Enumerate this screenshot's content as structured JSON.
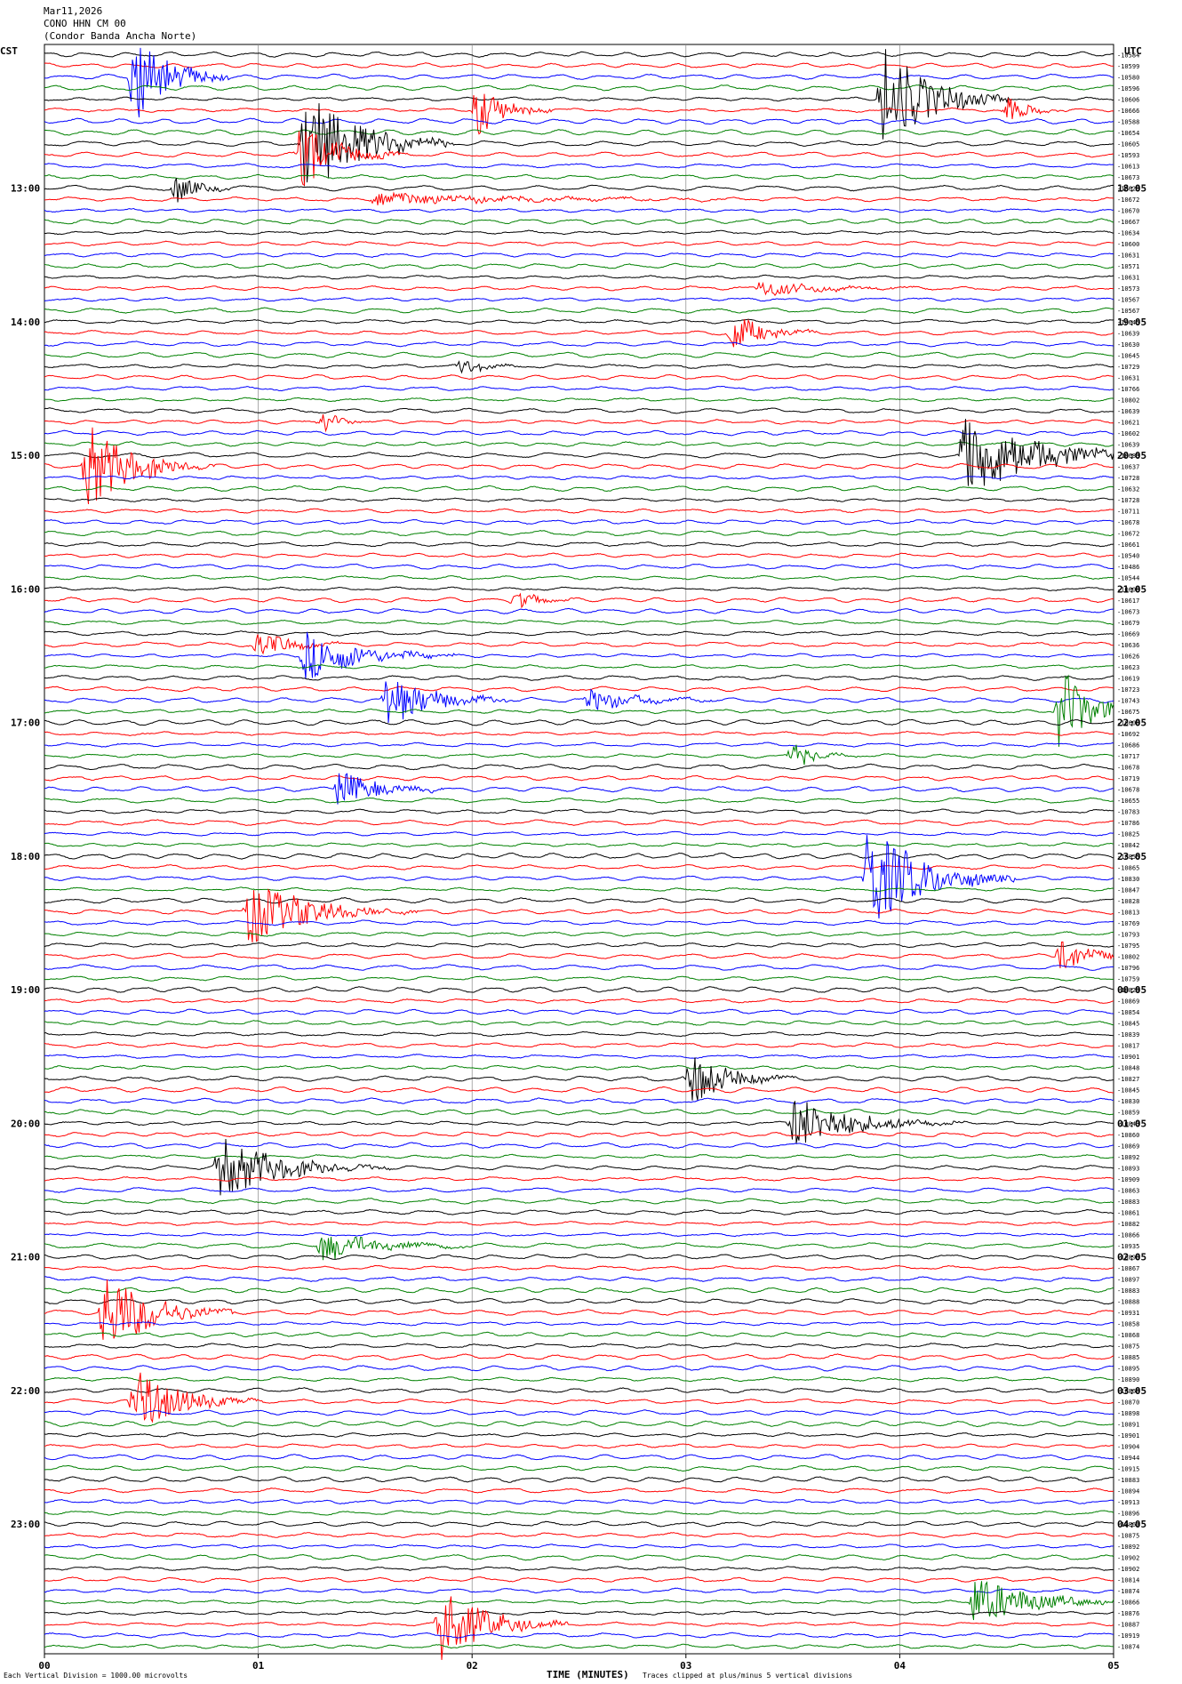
{
  "header": {
    "date": "Mar11,2026",
    "station": "CONO HHN CM 00",
    "location": "(Condor Banda Ancha Norte)"
  },
  "corners": {
    "left": "CST",
    "right": "UTC"
  },
  "footer": {
    "left_note": "Each Vertical Division = 1000.00 microvolts",
    "right_note": "Traces clipped at plus/minus 5 vertical divisions"
  },
  "chart_data": {
    "type": "line",
    "xlabel": "TIME (MINUTES)",
    "xlim": [
      0,
      5
    ],
    "x_ticks": [
      "00",
      "01",
      "02",
      "03",
      "04",
      "05"
    ],
    "trace_colors": [
      "#000000",
      "#ff0000",
      "#0000ff",
      "#008000"
    ],
    "trace_count": 144,
    "left_time_labels": [
      {
        "trace": 12,
        "label": "13:00"
      },
      {
        "trace": 24,
        "label": "14:00"
      },
      {
        "trace": 36,
        "label": "15:00"
      },
      {
        "trace": 48,
        "label": "16:00"
      },
      {
        "trace": 60,
        "label": "17:00"
      },
      {
        "trace": 72,
        "label": "18:00"
      },
      {
        "trace": 84,
        "label": "19:00"
      },
      {
        "trace": 96,
        "label": "20:00"
      },
      {
        "trace": 108,
        "label": "21:00"
      },
      {
        "trace": 120,
        "label": "22:00"
      },
      {
        "trace": 132,
        "label": "23:00"
      }
    ],
    "right_time_labels": [
      {
        "trace": 12,
        "label": "18:05"
      },
      {
        "trace": 24,
        "label": "19:05"
      },
      {
        "trace": 36,
        "label": "20:05"
      },
      {
        "trace": 48,
        "label": "21:05"
      },
      {
        "trace": 60,
        "label": "22:05"
      },
      {
        "trace": 72,
        "label": "23:05"
      },
      {
        "trace": 84,
        "label": "00:05"
      },
      {
        "trace": 96,
        "label": "01:05"
      },
      {
        "trace": 108,
        "label": "02:05"
      },
      {
        "trace": 120,
        "label": "03:05"
      },
      {
        "trace": 132,
        "label": "04:05"
      }
    ],
    "trace_values": [
      "-10584",
      "-10599",
      "-10580",
      "-10596",
      "-10606",
      "-10666",
      "-10588",
      "-10654",
      "-10605",
      "-10593",
      "-10613",
      "-10673",
      "-10628",
      "-10672",
      "-10670",
      "-10667",
      "-10634",
      "-10600",
      "-10631",
      "-10571",
      "-10631",
      "-10573",
      "-10567",
      "-10567",
      "-10645",
      "-10639",
      "-10630",
      "-10645",
      "-10729",
      "-10631",
      "-10766",
      "-10802",
      "-10639",
      "-10621",
      "-10602",
      "-10639",
      "-10683",
      "-10637",
      "-10728",
      "-10632",
      "-10728",
      "-10711",
      "-10678",
      "-10672",
      "-10661",
      "-10540",
      "-10486",
      "-10544",
      "-10608",
      "-10617",
      "-10673",
      "-10679",
      "-10669",
      "-10636",
      "-10626",
      "-10623",
      "-10619",
      "-10723",
      "-10743",
      "-10675",
      "-10608",
      "-10692",
      "-10686",
      "-10717",
      "-10678",
      "-10719",
      "-10678",
      "-10655",
      "-10783",
      "-10786",
      "-10825",
      "-10842",
      "-10855",
      "-10865",
      "-10830",
      "-10847",
      "-10828",
      "-10813",
      "-10769",
      "-10793",
      "-10795",
      "-10802",
      "-10796",
      "-10759",
      "-10829",
      "-10869",
      "-10854",
      "-10845",
      "-10839",
      "-10817",
      "-10901",
      "-10848",
      "-10827",
      "-10845",
      "-10830",
      "-10859",
      "-10843",
      "-10860",
      "-10869",
      "-10892",
      "-10893",
      "-10909",
      "-10863",
      "-10883",
      "-10861",
      "-10882",
      "-10866",
      "-10935",
      "-10890",
      "-10867",
      "-10897",
      "-10883",
      "-10888",
      "-10931",
      "-10858",
      "-10868",
      "-10875",
      "-10885",
      "-10895",
      "-10890",
      "-10868",
      "-10870",
      "-10898",
      "-10891",
      "-10901",
      "-10904",
      "-10944",
      "-10915",
      "-10883",
      "-10894",
      "-10913",
      "-10896",
      "-10867",
      "-10875",
      "-10892",
      "-10902",
      "-10902",
      "-10814",
      "-10874",
      "-10866",
      "-10876",
      "-10887",
      "-10919",
      "-10874"
    ],
    "events": [
      {
        "trace": 2,
        "minute": 0.42,
        "amp": 4.5,
        "dur": 0.45
      },
      {
        "trace": 4,
        "minute": 3.92,
        "amp": 5.0,
        "dur": 0.6
      },
      {
        "trace": 5,
        "minute": 2.02,
        "amp": 2.5,
        "dur": 0.35
      },
      {
        "trace": 5,
        "minute": 4.5,
        "amp": 1.2,
        "dur": 0.3
      },
      {
        "trace": 8,
        "minute": 1.22,
        "amp": 5.0,
        "dur": 0.7
      },
      {
        "trace": 9,
        "minute": 1.2,
        "amp": 3.0,
        "dur": 0.5
      },
      {
        "trace": 12,
        "minute": 0.62,
        "amp": 1.6,
        "dur": 0.25
      },
      {
        "trace": 13,
        "minute": 1.55,
        "amp": 0.6,
        "dur": 1.8
      },
      {
        "trace": 21,
        "minute": 3.35,
        "amp": 0.7,
        "dur": 0.8
      },
      {
        "trace": 25,
        "minute": 3.22,
        "amp": 1.8,
        "dur": 0.4
      },
      {
        "trace": 28,
        "minute": 1.95,
        "amp": 0.8,
        "dur": 0.3
      },
      {
        "trace": 33,
        "minute": 1.3,
        "amp": 0.9,
        "dur": 0.25
      },
      {
        "trace": 36,
        "minute": 4.3,
        "amp": 4.0,
        "dur": 0.9
      },
      {
        "trace": 37,
        "minute": 0.2,
        "amp": 4.0,
        "dur": 0.6
      },
      {
        "trace": 49,
        "minute": 2.2,
        "amp": 0.9,
        "dur": 0.3
      },
      {
        "trace": 53,
        "minute": 1.0,
        "amp": 1.4,
        "dur": 0.4
      },
      {
        "trace": 54,
        "minute": 1.22,
        "amp": 2.3,
        "dur": 0.7
      },
      {
        "trace": 58,
        "minute": 1.6,
        "amp": 2.4,
        "dur": 0.6
      },
      {
        "trace": 58,
        "minute": 2.55,
        "amp": 1.1,
        "dur": 0.6
      },
      {
        "trace": 59,
        "minute": 4.75,
        "amp": 4.0,
        "dur": 0.4
      },
      {
        "trace": 63,
        "minute": 3.5,
        "amp": 1.2,
        "dur": 0.3
      },
      {
        "trace": 66,
        "minute": 1.38,
        "amp": 1.8,
        "dur": 0.5
      },
      {
        "trace": 74,
        "minute": 3.85,
        "amp": 5.0,
        "dur": 0.7
      },
      {
        "trace": 77,
        "minute": 0.95,
        "amp": 3.0,
        "dur": 0.8
      },
      {
        "trace": 81,
        "minute": 4.75,
        "amp": 1.6,
        "dur": 0.4
      },
      {
        "trace": 92,
        "minute": 3.02,
        "amp": 2.5,
        "dur": 0.5
      },
      {
        "trace": 96,
        "minute": 3.5,
        "amp": 2.5,
        "dur": 0.8
      },
      {
        "trace": 100,
        "minute": 0.82,
        "amp": 2.8,
        "dur": 0.8
      },
      {
        "trace": 107,
        "minute": 1.3,
        "amp": 1.4,
        "dur": 0.7
      },
      {
        "trace": 113,
        "minute": 0.28,
        "amp": 4.0,
        "dur": 0.6
      },
      {
        "trace": 121,
        "minute": 0.42,
        "amp": 3.0,
        "dur": 0.6
      },
      {
        "trace": 139,
        "minute": 4.35,
        "amp": 2.5,
        "dur": 0.7
      },
      {
        "trace": 141,
        "minute": 1.85,
        "amp": 3.5,
        "dur": 0.6
      }
    ]
  }
}
